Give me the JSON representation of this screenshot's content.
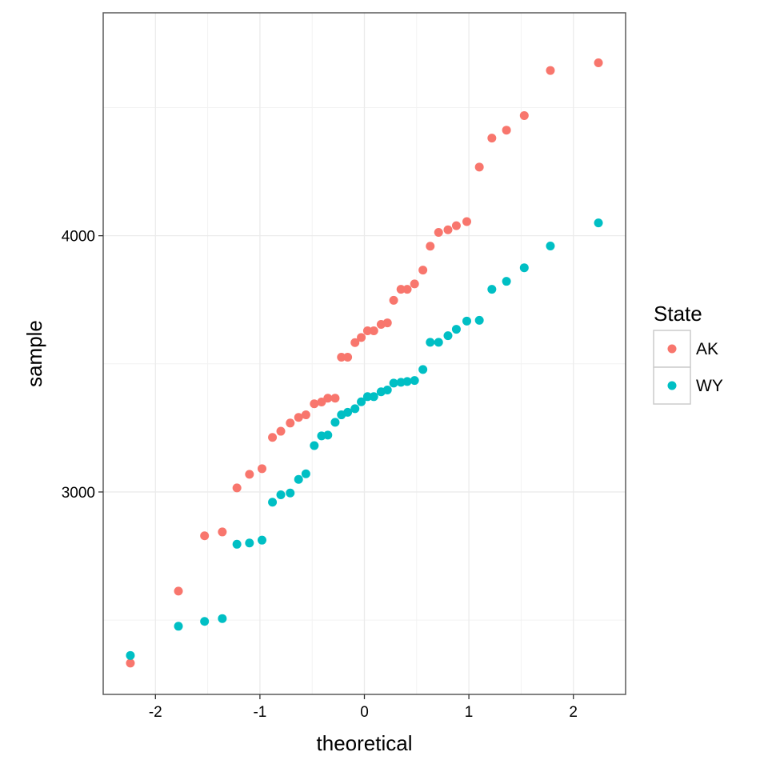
{
  "chart_data": {
    "type": "scatter",
    "title": "",
    "xlabel": "theoretical",
    "ylabel": "sample",
    "xlim": [
      -2.5,
      2.5
    ],
    "ylim": [
      2210,
      4870
    ],
    "x_ticks": [
      -2,
      -1,
      0,
      1,
      2
    ],
    "x_tick_labels": [
      "-2",
      "-1",
      "0",
      "1",
      "2"
    ],
    "y_ticks": [
      3000,
      4000
    ],
    "y_tick_labels": [
      "3000",
      "4000"
    ],
    "grid": true,
    "legend": {
      "title": "State",
      "position": "right"
    },
    "series": [
      {
        "name": "AK",
        "color": "#F8766D",
        "points": [
          [
            -2.24,
            2332
          ],
          [
            -1.78,
            2613
          ],
          [
            -1.53,
            2829
          ],
          [
            -1.36,
            2844
          ],
          [
            -1.22,
            3016
          ],
          [
            -1.1,
            3069
          ],
          [
            -0.98,
            3091
          ],
          [
            -0.88,
            3213
          ],
          [
            -0.8,
            3237
          ],
          [
            -0.71,
            3269
          ],
          [
            -0.63,
            3291
          ],
          [
            -0.56,
            3301
          ],
          [
            -0.48,
            3344
          ],
          [
            -0.41,
            3351
          ],
          [
            -0.35,
            3366
          ],
          [
            -0.28,
            3366
          ],
          [
            -0.22,
            3526
          ],
          [
            -0.16,
            3526
          ],
          [
            -0.09,
            3583
          ],
          [
            -0.03,
            3603
          ],
          [
            0.03,
            3629
          ],
          [
            0.09,
            3629
          ],
          [
            0.16,
            3654
          ],
          [
            0.22,
            3660
          ],
          [
            0.28,
            3748
          ],
          [
            0.35,
            3791
          ],
          [
            0.41,
            3791
          ],
          [
            0.48,
            3812
          ],
          [
            0.56,
            3866
          ],
          [
            0.63,
            3959
          ],
          [
            0.71,
            4013
          ],
          [
            0.8,
            4023
          ],
          [
            0.88,
            4039
          ],
          [
            0.98,
            4055
          ],
          [
            1.1,
            4268
          ],
          [
            1.22,
            4381
          ],
          [
            1.36,
            4412
          ],
          [
            1.53,
            4469
          ],
          [
            1.78,
            4645
          ],
          [
            2.24,
            4675
          ]
        ]
      },
      {
        "name": "WY",
        "color": "#00BFC4",
        "points": [
          [
            -2.24,
            2362
          ],
          [
            -1.78,
            2476
          ],
          [
            -1.53,
            2495
          ],
          [
            -1.36,
            2506
          ],
          [
            -1.22,
            2796
          ],
          [
            -1.1,
            2801
          ],
          [
            -0.98,
            2812
          ],
          [
            -0.88,
            2960
          ],
          [
            -0.8,
            2989
          ],
          [
            -0.71,
            2996
          ],
          [
            -0.63,
            3049
          ],
          [
            -0.56,
            3071
          ],
          [
            -0.48,
            3181
          ],
          [
            -0.41,
            3219
          ],
          [
            -0.35,
            3222
          ],
          [
            -0.28,
            3272
          ],
          [
            -0.22,
            3301
          ],
          [
            -0.16,
            3311
          ],
          [
            -0.09,
            3325
          ],
          [
            -0.03,
            3352
          ],
          [
            0.03,
            3372
          ],
          [
            0.09,
            3372
          ],
          [
            0.16,
            3391
          ],
          [
            0.22,
            3398
          ],
          [
            0.28,
            3425
          ],
          [
            0.35,
            3428
          ],
          [
            0.41,
            3431
          ],
          [
            0.48,
            3435
          ],
          [
            0.56,
            3478
          ],
          [
            0.63,
            3584
          ],
          [
            0.71,
            3584
          ],
          [
            0.8,
            3610
          ],
          [
            0.88,
            3635
          ],
          [
            0.98,
            3667
          ],
          [
            1.1,
            3670
          ],
          [
            1.22,
            3791
          ],
          [
            1.36,
            3822
          ],
          [
            1.53,
            3875
          ],
          [
            1.78,
            3960
          ],
          [
            2.24,
            4050
          ]
        ]
      }
    ]
  }
}
